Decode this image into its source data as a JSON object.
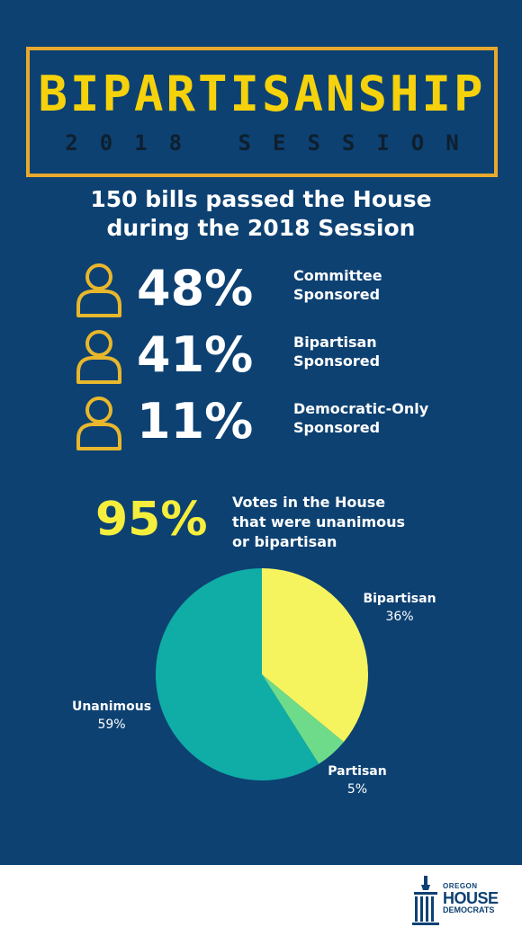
{
  "header": {
    "title": "BIPARTISANSHIP",
    "subtitle": "2018 SESSION"
  },
  "headline": {
    "line1": "150 bills passed the House",
    "line2": "during the 2018 Session"
  },
  "stats": [
    {
      "percent": "48%",
      "label_line1": "Committee",
      "label_line2": "Sponsored",
      "icon": "person-outline-icon"
    },
    {
      "percent": "41%",
      "label_line1": "Bipartisan",
      "label_line2": "Sponsored",
      "icon": "person-outline-icon"
    },
    {
      "percent": "11%",
      "label_line1": "Democratic-Only",
      "label_line2": "Sponsored",
      "icon": "person-outline-icon"
    }
  ],
  "votes": {
    "percent": "95%",
    "label_line1": "Votes in the House",
    "label_line2": "that were unanimous",
    "label_line3": "or bipartisan"
  },
  "chart_data": {
    "type": "pie",
    "slices": [
      {
        "name": "Bipartisan",
        "value": 36,
        "label": "36%",
        "color": "#f6f45e"
      },
      {
        "name": "Partisan",
        "value": 5,
        "label": "5%",
        "color": "#6edb8a"
      },
      {
        "name": "Unanimous",
        "value": 59,
        "label": "59%",
        "color": "#0fada6"
      }
    ],
    "start_angle": "12 o'clock",
    "direction": "clockwise"
  },
  "logo": {
    "line1": "OREGON",
    "line2": "HOUSE",
    "line3": "DEMOCRATS"
  },
  "colors": {
    "background": "#0d4172",
    "title": "#f5d20b",
    "border": "#e8a92d",
    "highlight": "#f5ee3d"
  }
}
